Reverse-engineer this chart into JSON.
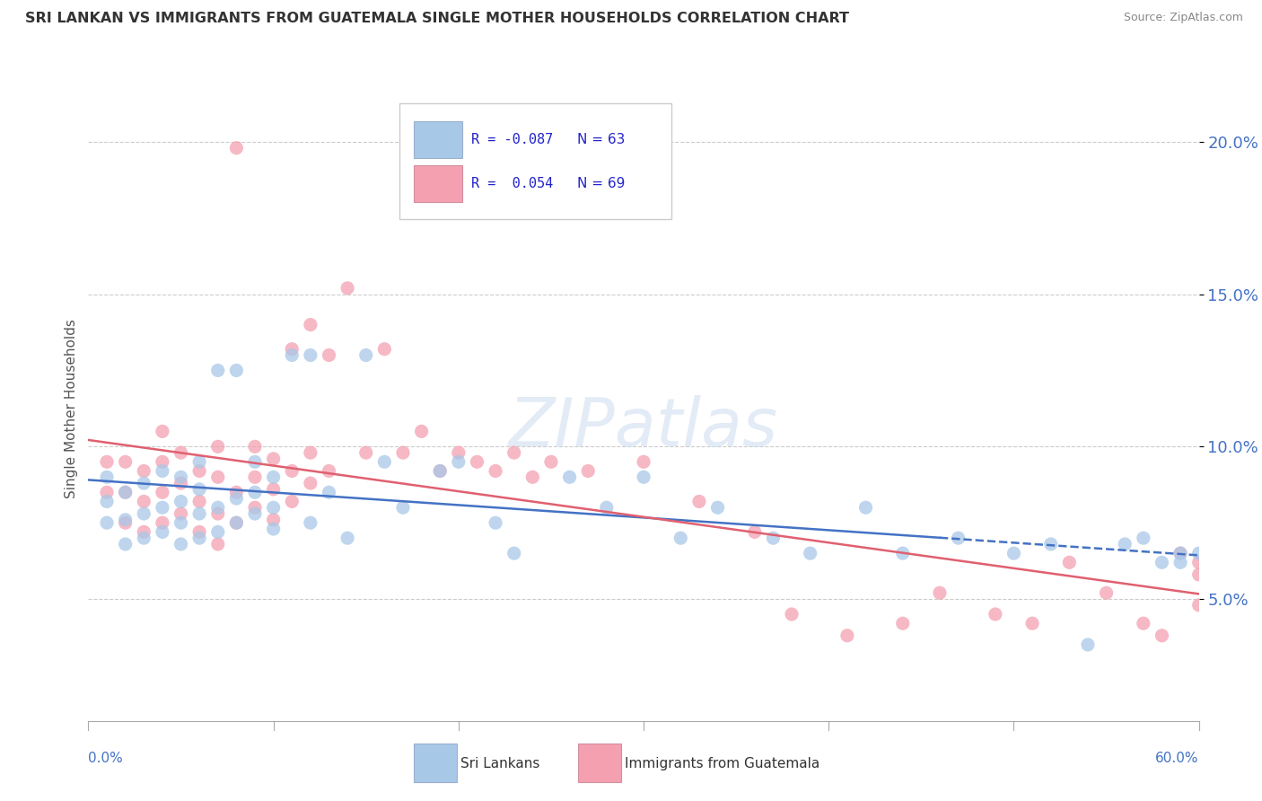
{
  "title": "SRI LANKAN VS IMMIGRANTS FROM GUATEMALA SINGLE MOTHER HOUSEHOLDS CORRELATION CHART",
  "source": "Source: ZipAtlas.com",
  "ylabel": "Single Mother Households",
  "xlim": [
    0.0,
    0.6
  ],
  "ylim": [
    0.01,
    0.215
  ],
  "yticks": [
    0.05,
    0.1,
    0.15,
    0.2
  ],
  "ytick_labels": [
    "5.0%",
    "10.0%",
    "15.0%",
    "20.0%"
  ],
  "color_sri": "#a8c8e8",
  "color_guat": "#f4a0b0",
  "trendline_sri_color": "#4472c4",
  "trendline_guat_color": "#e06070",
  "background_color": "#ffffff",
  "grid_color": "#cccccc",
  "sri_x": [
    0.01,
    0.01,
    0.01,
    0.02,
    0.02,
    0.02,
    0.03,
    0.03,
    0.03,
    0.04,
    0.04,
    0.04,
    0.05,
    0.05,
    0.05,
    0.05,
    0.06,
    0.06,
    0.06,
    0.06,
    0.07,
    0.07,
    0.07,
    0.08,
    0.08,
    0.08,
    0.09,
    0.09,
    0.09,
    0.1,
    0.1,
    0.1,
    0.11,
    0.12,
    0.12,
    0.13,
    0.14,
    0.15,
    0.16,
    0.17,
    0.19,
    0.2,
    0.22,
    0.23,
    0.26,
    0.28,
    0.3,
    0.32,
    0.34,
    0.37,
    0.39,
    0.42,
    0.44,
    0.47,
    0.5,
    0.52,
    0.54,
    0.56,
    0.57,
    0.58,
    0.59,
    0.59,
    0.6
  ],
  "sri_y": [
    0.075,
    0.082,
    0.09,
    0.068,
    0.076,
    0.085,
    0.07,
    0.078,
    0.088,
    0.072,
    0.08,
    0.092,
    0.068,
    0.075,
    0.082,
    0.09,
    0.07,
    0.078,
    0.086,
    0.095,
    0.072,
    0.08,
    0.125,
    0.075,
    0.083,
    0.125,
    0.078,
    0.085,
    0.095,
    0.073,
    0.08,
    0.09,
    0.13,
    0.075,
    0.13,
    0.085,
    0.07,
    0.13,
    0.095,
    0.08,
    0.092,
    0.095,
    0.075,
    0.065,
    0.09,
    0.08,
    0.09,
    0.07,
    0.08,
    0.07,
    0.065,
    0.08,
    0.065,
    0.07,
    0.065,
    0.068,
    0.035,
    0.068,
    0.07,
    0.062,
    0.065,
    0.062,
    0.065
  ],
  "guat_x": [
    0.01,
    0.01,
    0.02,
    0.02,
    0.02,
    0.03,
    0.03,
    0.03,
    0.04,
    0.04,
    0.04,
    0.04,
    0.05,
    0.05,
    0.05,
    0.06,
    0.06,
    0.06,
    0.07,
    0.07,
    0.07,
    0.07,
    0.08,
    0.08,
    0.08,
    0.09,
    0.09,
    0.09,
    0.1,
    0.1,
    0.1,
    0.11,
    0.11,
    0.11,
    0.12,
    0.12,
    0.12,
    0.13,
    0.13,
    0.14,
    0.15,
    0.16,
    0.17,
    0.18,
    0.19,
    0.2,
    0.21,
    0.22,
    0.23,
    0.24,
    0.25,
    0.27,
    0.3,
    0.33,
    0.36,
    0.38,
    0.41,
    0.44,
    0.46,
    0.49,
    0.51,
    0.53,
    0.55,
    0.57,
    0.58,
    0.59,
    0.6,
    0.6,
    0.6
  ],
  "guat_y": [
    0.085,
    0.095,
    0.075,
    0.085,
    0.095,
    0.072,
    0.082,
    0.092,
    0.075,
    0.085,
    0.095,
    0.105,
    0.078,
    0.088,
    0.098,
    0.072,
    0.082,
    0.092,
    0.068,
    0.078,
    0.09,
    0.1,
    0.075,
    0.085,
    0.198,
    0.08,
    0.09,
    0.1,
    0.076,
    0.086,
    0.096,
    0.082,
    0.092,
    0.132,
    0.088,
    0.098,
    0.14,
    0.092,
    0.13,
    0.152,
    0.098,
    0.132,
    0.098,
    0.105,
    0.092,
    0.098,
    0.095,
    0.092,
    0.098,
    0.09,
    0.095,
    0.092,
    0.095,
    0.082,
    0.072,
    0.045,
    0.038,
    0.042,
    0.052,
    0.045,
    0.042,
    0.062,
    0.052,
    0.042,
    0.038,
    0.065,
    0.048,
    0.062,
    0.058
  ]
}
